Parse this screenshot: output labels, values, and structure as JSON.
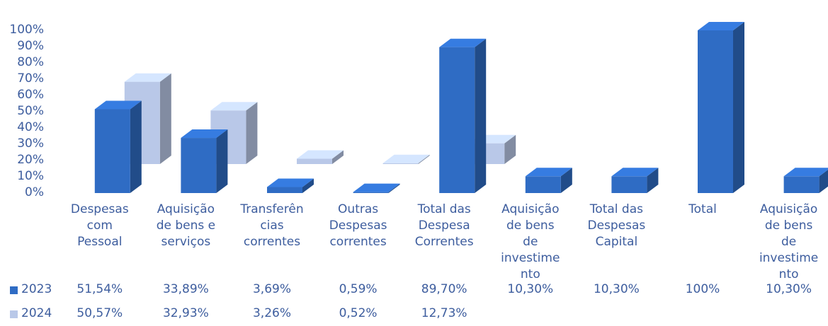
{
  "chart_data": {
    "type": "bar3d",
    "categories": [
      "Despesas com Pessoal",
      "Aquisição de bens e serviços",
      "Transferências correntes",
      "Outras Despesas correntes",
      "Total das Despesa Correntes",
      "Aquisição de bens de investimento",
      "Total das Despesas Capital",
      "Total",
      "Aquisição de bens de investimento"
    ],
    "series": [
      {
        "name": "2023",
        "color": "#2f6cc4",
        "values": [
          51.54,
          33.89,
          3.69,
          0.59,
          89.7,
          10.3,
          10.3,
          100,
          10.3
        ],
        "value_labels": [
          "51,54%",
          "33,89%",
          "3,69%",
          "0,59%",
          "89,70%",
          "10,30%",
          "10,30%",
          "100%",
          "10,30%"
        ]
      },
      {
        "name": "2024",
        "color": "#b9c8e8",
        "values": [
          50.57,
          32.93,
          3.26,
          0.52,
          12.73,
          null,
          null,
          null,
          null
        ],
        "value_labels": [
          "50,57%",
          "32,93%",
          "3,26%",
          "0,52%",
          "12,73%",
          null,
          null,
          null,
          null
        ]
      }
    ],
    "ylim": [
      0,
      100
    ],
    "yticks": [
      {
        "value": 0,
        "label": "0%"
      },
      {
        "value": 10,
        "label": "10%"
      },
      {
        "value": 20,
        "label": "20%"
      },
      {
        "value": 30,
        "label": "30%"
      },
      {
        "value": 40,
        "label": "40%"
      },
      {
        "value": 50,
        "label": "50%"
      },
      {
        "value": 60,
        "label": "60%"
      },
      {
        "value": 70,
        "label": "70%"
      },
      {
        "value": 80,
        "label": "80%"
      },
      {
        "value": 90,
        "label": "90%"
      },
      {
        "value": 100,
        "label": "100%"
      }
    ]
  }
}
